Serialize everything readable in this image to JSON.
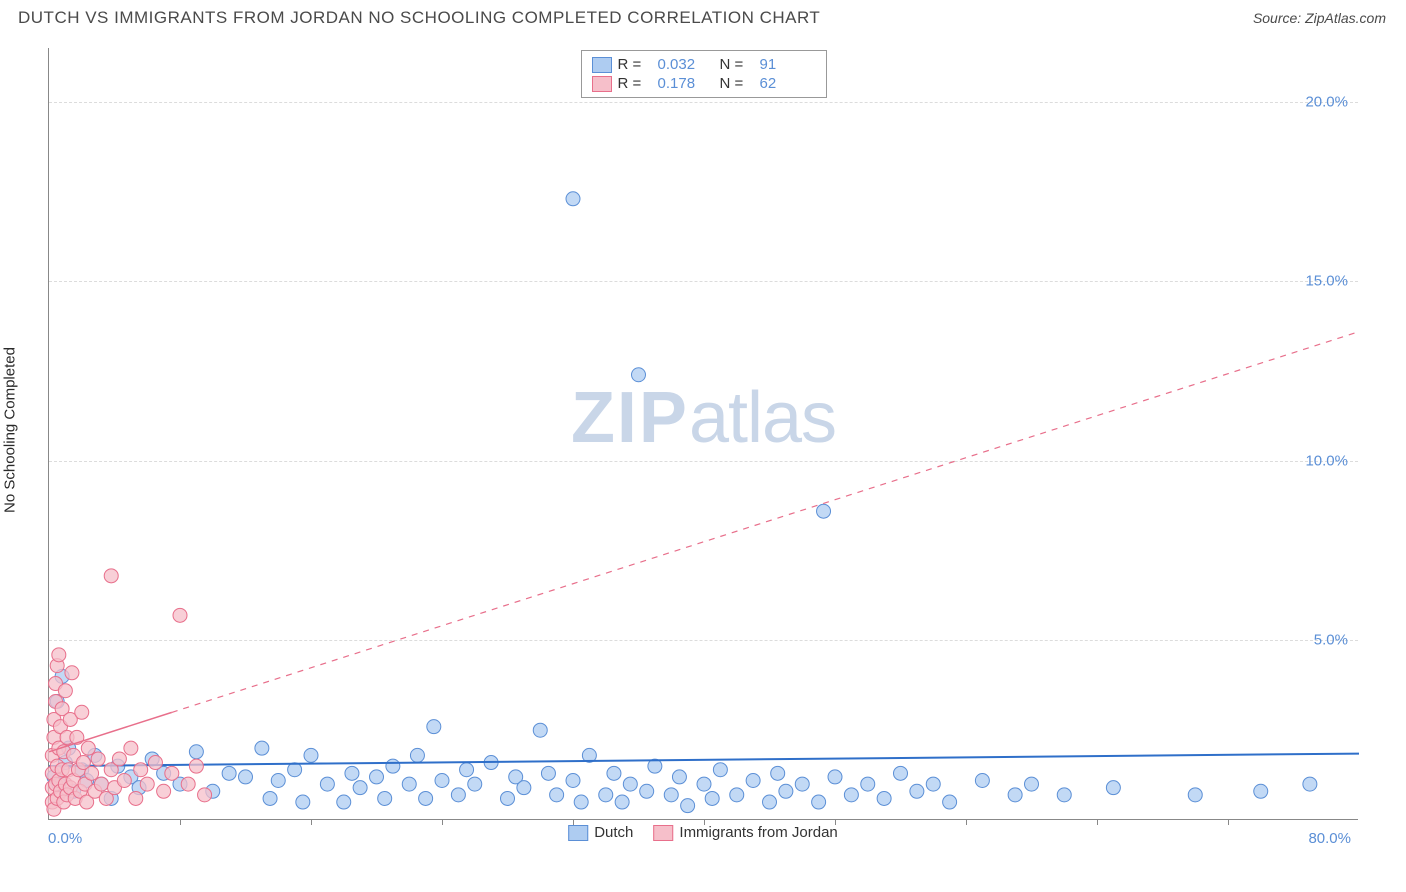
{
  "header": {
    "title": "DUTCH VS IMMIGRANTS FROM JORDAN NO SCHOOLING COMPLETED CORRELATION CHART",
    "source": "Source: ZipAtlas.com"
  },
  "watermark": {
    "zip": "ZIP",
    "atlas": "atlas"
  },
  "chart": {
    "type": "scatter",
    "y_axis_title": "No Schooling Completed",
    "xlim": [
      0,
      80
    ],
    "ylim": [
      0,
      21.5
    ],
    "x_tick_step": 8,
    "x_label_min": "0.0%",
    "x_label_max": "80.0%",
    "y_ticks": [
      {
        "v": 5.0,
        "label": "5.0%"
      },
      {
        "v": 10.0,
        "label": "10.0%"
      },
      {
        "v": 15.0,
        "label": "15.0%"
      },
      {
        "v": 20.0,
        "label": "20.0%"
      }
    ],
    "background_color": "#ffffff",
    "grid_color": "#dcdcdc",
    "marker_radius": 7,
    "marker_stroke_width": 1,
    "series": [
      {
        "key": "dutch",
        "name": "Dutch",
        "fill": "#aeccf1",
        "stroke": "#5b8fd6",
        "r_value": "0.032",
        "n_value": "91",
        "trend": {
          "x1": 0,
          "y1": 1.5,
          "x2": 80,
          "y2": 1.85,
          "solid_until_x": 80,
          "stroke": "#2f6fc9",
          "width": 2
        },
        "points": [
          [
            0.3,
            1.2
          ],
          [
            0.5,
            3.3
          ],
          [
            0.6,
            1.0
          ],
          [
            0.8,
            4.0
          ],
          [
            1.0,
            1.6
          ],
          [
            1.2,
            2.0
          ],
          [
            1.5,
            0.8
          ],
          [
            2.0,
            1.4
          ],
          [
            2.3,
            1.1
          ],
          [
            2.8,
            1.8
          ],
          [
            3.2,
            1.0
          ],
          [
            3.8,
            0.6
          ],
          [
            4.2,
            1.5
          ],
          [
            5.0,
            1.2
          ],
          [
            5.5,
            0.9
          ],
          [
            6.3,
            1.7
          ],
          [
            7.0,
            1.3
          ],
          [
            8.0,
            1.0
          ],
          [
            9.0,
            1.9
          ],
          [
            10.0,
            0.8
          ],
          [
            11.0,
            1.3
          ],
          [
            12.0,
            1.2
          ],
          [
            13.0,
            2.0
          ],
          [
            13.5,
            0.6
          ],
          [
            14.0,
            1.1
          ],
          [
            15.0,
            1.4
          ],
          [
            15.5,
            0.5
          ],
          [
            16.0,
            1.8
          ],
          [
            17.0,
            1.0
          ],
          [
            18.0,
            0.5
          ],
          [
            18.5,
            1.3
          ],
          [
            19.0,
            0.9
          ],
          [
            20.0,
            1.2
          ],
          [
            20.5,
            0.6
          ],
          [
            21.0,
            1.5
          ],
          [
            22.0,
            1.0
          ],
          [
            22.5,
            1.8
          ],
          [
            23.0,
            0.6
          ],
          [
            23.5,
            2.6
          ],
          [
            24.0,
            1.1
          ],
          [
            25.0,
            0.7
          ],
          [
            25.5,
            1.4
          ],
          [
            26.0,
            1.0
          ],
          [
            27.0,
            1.6
          ],
          [
            28.0,
            0.6
          ],
          [
            28.5,
            1.2
          ],
          [
            29.0,
            0.9
          ],
          [
            30.0,
            2.5
          ],
          [
            30.5,
            1.3
          ],
          [
            31.0,
            0.7
          ],
          [
            32.0,
            17.3
          ],
          [
            32.0,
            1.1
          ],
          [
            32.5,
            0.5
          ],
          [
            33.0,
            1.8
          ],
          [
            34.0,
            0.7
          ],
          [
            34.5,
            1.3
          ],
          [
            35.0,
            0.5
          ],
          [
            35.5,
            1.0
          ],
          [
            36.0,
            12.4
          ],
          [
            36.5,
            0.8
          ],
          [
            37.0,
            1.5
          ],
          [
            38.0,
            0.7
          ],
          [
            38.5,
            1.2
          ],
          [
            39.0,
            0.4
          ],
          [
            40.0,
            1.0
          ],
          [
            40.5,
            0.6
          ],
          [
            41.0,
            1.4
          ],
          [
            42.0,
            0.7
          ],
          [
            43.0,
            1.1
          ],
          [
            44.0,
            0.5
          ],
          [
            44.5,
            1.3
          ],
          [
            45.0,
            0.8
          ],
          [
            46.0,
            1.0
          ],
          [
            47.0,
            0.5
          ],
          [
            47.3,
            8.6
          ],
          [
            48.0,
            1.2
          ],
          [
            49.0,
            0.7
          ],
          [
            50.0,
            1.0
          ],
          [
            51.0,
            0.6
          ],
          [
            52.0,
            1.3
          ],
          [
            53.0,
            0.8
          ],
          [
            54.0,
            1.0
          ],
          [
            55.0,
            0.5
          ],
          [
            57.0,
            1.1
          ],
          [
            59.0,
            0.7
          ],
          [
            60.0,
            1.0
          ],
          [
            62.0,
            0.7
          ],
          [
            65.0,
            0.9
          ],
          [
            70.0,
            0.7
          ],
          [
            74.0,
            0.8
          ],
          [
            77.0,
            1.0
          ]
        ]
      },
      {
        "key": "jordan",
        "name": "Immigrants from Jordan",
        "fill": "#f6bfca",
        "stroke": "#e86f8b",
        "r_value": "0.178",
        "n_value": "62",
        "trend": {
          "x1": 0,
          "y1": 1.9,
          "x2": 80,
          "y2": 13.6,
          "solid_until_x": 7.5,
          "stroke": "#e86f8b",
          "width": 1.5
        },
        "points": [
          [
            0.2,
            0.5
          ],
          [
            0.2,
            0.9
          ],
          [
            0.2,
            1.3
          ],
          [
            0.2,
            1.8
          ],
          [
            0.3,
            2.3
          ],
          [
            0.3,
            2.8
          ],
          [
            0.3,
            0.3
          ],
          [
            0.4,
            3.3
          ],
          [
            0.4,
            1.0
          ],
          [
            0.4,
            3.8
          ],
          [
            0.5,
            1.5
          ],
          [
            0.5,
            4.3
          ],
          [
            0.5,
            0.6
          ],
          [
            0.6,
            2.0
          ],
          [
            0.6,
            4.6
          ],
          [
            0.6,
            1.1
          ],
          [
            0.7,
            2.6
          ],
          [
            0.7,
            0.8
          ],
          [
            0.8,
            3.1
          ],
          [
            0.8,
            1.4
          ],
          [
            0.9,
            1.9
          ],
          [
            0.9,
            0.5
          ],
          [
            1.0,
            3.6
          ],
          [
            1.0,
            1.0
          ],
          [
            1.1,
            2.3
          ],
          [
            1.1,
            0.7
          ],
          [
            1.2,
            1.4
          ],
          [
            1.3,
            2.8
          ],
          [
            1.3,
            0.9
          ],
          [
            1.4,
            4.1
          ],
          [
            1.5,
            1.8
          ],
          [
            1.5,
            1.1
          ],
          [
            1.6,
            0.6
          ],
          [
            1.7,
            2.3
          ],
          [
            1.8,
            1.4
          ],
          [
            1.9,
            0.8
          ],
          [
            2.0,
            3.0
          ],
          [
            2.1,
            1.6
          ],
          [
            2.2,
            1.0
          ],
          [
            2.3,
            0.5
          ],
          [
            2.4,
            2.0
          ],
          [
            2.6,
            1.3
          ],
          [
            2.8,
            0.8
          ],
          [
            3.0,
            1.7
          ],
          [
            3.2,
            1.0
          ],
          [
            3.5,
            0.6
          ],
          [
            3.8,
            6.8
          ],
          [
            3.8,
            1.4
          ],
          [
            4.0,
            0.9
          ],
          [
            4.3,
            1.7
          ],
          [
            4.6,
            1.1
          ],
          [
            5.0,
            2.0
          ],
          [
            5.3,
            0.6
          ],
          [
            5.6,
            1.4
          ],
          [
            6.0,
            1.0
          ],
          [
            6.5,
            1.6
          ],
          [
            7.0,
            0.8
          ],
          [
            7.5,
            1.3
          ],
          [
            8.0,
            5.7
          ],
          [
            8.5,
            1.0
          ],
          [
            9.0,
            1.5
          ],
          [
            9.5,
            0.7
          ]
        ]
      }
    ],
    "legend_bottom": [
      {
        "name": "Dutch",
        "fill": "#aeccf1",
        "stroke": "#5b8fd6"
      },
      {
        "name": "Immigrants from Jordan",
        "fill": "#f6bfca",
        "stroke": "#e86f8b"
      }
    ]
  }
}
